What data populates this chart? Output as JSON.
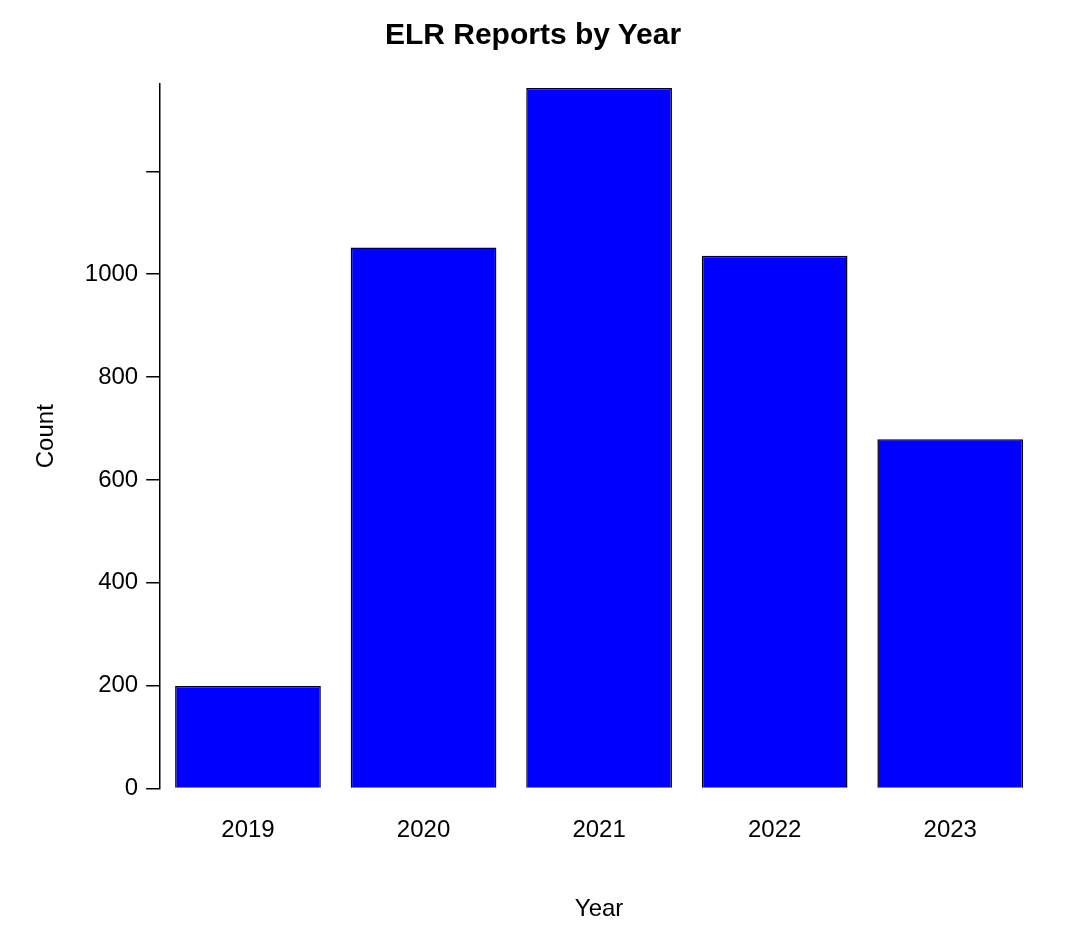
{
  "chart_data": {
    "type": "bar",
    "title": "ELR Reports by Year",
    "xlabel": "Year",
    "ylabel": "Count",
    "categories": [
      "2019",
      "2020",
      "2021",
      "2022",
      "2023"
    ],
    "values": [
      199,
      1052,
      1362,
      1036,
      679
    ],
    "color": "#0000ff",
    "ylim": [
      0,
      1370
    ],
    "yticks": [
      0,
      200,
      400,
      600,
      800,
      1000,
      {
        "value": 1200,
        "label": null
      }
    ],
    "grid": false,
    "legend": false
  }
}
